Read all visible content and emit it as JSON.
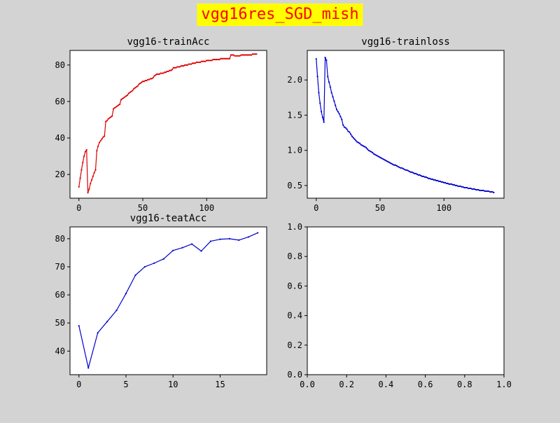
{
  "suptitle": "vgg16res_SGD_mish",
  "chart_data": [
    {
      "type": "line",
      "title": "vgg16-trainAcc",
      "xlim": [
        -7,
        147
      ],
      "ylim": [
        7,
        88
      ],
      "xticks": [
        0,
        50,
        100
      ],
      "yticks": [
        20,
        40,
        60,
        80
      ],
      "color": "#dd0000",
      "marker": true,
      "series": [
        {
          "x": [
            0,
            1,
            2,
            3,
            4,
            5,
            6,
            7,
            8,
            9,
            10,
            11,
            12,
            13,
            14,
            15,
            16,
            17,
            18,
            19,
            20,
            21,
            22,
            23,
            24,
            25,
            26,
            27,
            28,
            29,
            30,
            31,
            32,
            33,
            34,
            35,
            36,
            37,
            38,
            39,
            40,
            41,
            42,
            43,
            44,
            45,
            46,
            47,
            48,
            49,
            50,
            51,
            52,
            53,
            54,
            55,
            56,
            57,
            58,
            59,
            60,
            61,
            62,
            63,
            64,
            65,
            66,
            67,
            68,
            69,
            70,
            71,
            72,
            73,
            74,
            75,
            76,
            77,
            78,
            79,
            80,
            81,
            82,
            83,
            84,
            85,
            86,
            87,
            88,
            89,
            90,
            91,
            92,
            93,
            94,
            95,
            96,
            97,
            98,
            99,
            100,
            101,
            102,
            103,
            104,
            105,
            106,
            107,
            108,
            109,
            110,
            111,
            112,
            113,
            114,
            115,
            116,
            117,
            118,
            119,
            120,
            121,
            122,
            123,
            124,
            125,
            126,
            127,
            128,
            129,
            130,
            131,
            132,
            133,
            134,
            135,
            136,
            137,
            138,
            139
          ],
          "y": [
            13.2,
            18,
            22.5,
            26.5,
            30,
            32.5,
            33.5,
            10,
            12,
            15,
            17,
            19,
            21,
            22.5,
            33,
            35.5,
            37.5,
            38.5,
            39.5,
            40.5,
            41,
            49,
            49.5,
            50.5,
            51,
            51.5,
            52,
            56,
            56.5,
            57,
            57.5,
            58,
            58.5,
            61,
            61.5,
            62,
            62.5,
            63,
            63.5,
            64.5,
            65,
            65.5,
            66,
            67,
            67.5,
            68,
            68.5,
            69.5,
            70,
            70.5,
            71,
            71,
            71.5,
            71.5,
            72,
            72,
            72.5,
            72.5,
            73,
            74,
            74.5,
            75,
            75,
            75,
            75.5,
            75.5,
            75.5,
            76,
            76,
            76.5,
            76.5,
            77,
            77,
            77.5,
            78.5,
            78.5,
            78.5,
            79,
            79,
            79,
            79.5,
            79.5,
            79.5,
            80,
            80,
            80,
            80.5,
            80.5,
            80.5,
            81,
            81,
            81,
            81.5,
            81.5,
            81.5,
            81.5,
            82,
            82,
            82,
            82,
            82.5,
            82.5,
            82.5,
            82.5,
            82.5,
            83,
            83,
            83,
            83,
            83,
            83,
            83.5,
            83.5,
            83.5,
            83.5,
            83.5,
            83.5,
            83.5,
            83.5,
            85.5,
            85.5,
            85.5,
            85,
            85,
            85,
            85,
            85,
            85.5,
            85.5,
            85.5,
            85.5,
            85.5,
            85.5,
            85.5,
            85.5,
            85.5,
            86,
            86,
            86,
            86
          ]
        }
      ]
    },
    {
      "type": "line",
      "title": "vgg16-trainloss",
      "xlim": [
        -7,
        147
      ],
      "ylim": [
        0.32,
        2.42
      ],
      "xticks": [
        0,
        50,
        100
      ],
      "yticks": [
        0.5,
        1.0,
        1.5,
        2.0
      ],
      "ytick_labels": [
        "0.5",
        "1.0",
        "1.5",
        "2.0"
      ],
      "color": "#0000cc",
      "marker": true,
      "series": [
        {
          "x": [
            0,
            1,
            2,
            3,
            4,
            5,
            6,
            7,
            8,
            9,
            10,
            11,
            12,
            13,
            14,
            15,
            16,
            17,
            18,
            19,
            20,
            21,
            22,
            23,
            24,
            25,
            26,
            27,
            28,
            29,
            30,
            31,
            32,
            33,
            34,
            35,
            36,
            37,
            38,
            39,
            40,
            41,
            42,
            43,
            44,
            45,
            46,
            47,
            48,
            49,
            50,
            51,
            52,
            53,
            54,
            55,
            56,
            57,
            58,
            59,
            60,
            61,
            62,
            63,
            64,
            65,
            66,
            67,
            68,
            69,
            70,
            71,
            72,
            73,
            74,
            75,
            76,
            77,
            78,
            79,
            80,
            81,
            82,
            83,
            84,
            85,
            86,
            87,
            88,
            89,
            90,
            91,
            92,
            93,
            94,
            95,
            96,
            97,
            98,
            99,
            100,
            101,
            102,
            103,
            104,
            105,
            106,
            107,
            108,
            109,
            110,
            111,
            112,
            113,
            114,
            115,
            116,
            117,
            118,
            119,
            120,
            121,
            122,
            123,
            124,
            125,
            126,
            127,
            128,
            129,
            130,
            131,
            132,
            133,
            134,
            135,
            136,
            137,
            138,
            139
          ],
          "y": [
            2.3,
            2.05,
            1.82,
            1.67,
            1.55,
            1.47,
            1.4,
            2.32,
            2.28,
            2.05,
            1.97,
            1.9,
            1.82,
            1.76,
            1.7,
            1.64,
            1.58,
            1.55,
            1.52,
            1.48,
            1.44,
            1.36,
            1.33,
            1.32,
            1.3,
            1.27,
            1.26,
            1.23,
            1.2,
            1.18,
            1.16,
            1.14,
            1.12,
            1.11,
            1.1,
            1.08,
            1.07,
            1.06,
            1.05,
            1.04,
            1.02,
            1.0,
            0.99,
            0.98,
            0.97,
            0.95,
            0.94,
            0.93,
            0.92,
            0.91,
            0.9,
            0.89,
            0.88,
            0.87,
            0.86,
            0.85,
            0.84,
            0.83,
            0.82,
            0.81,
            0.8,
            0.79,
            0.79,
            0.78,
            0.77,
            0.76,
            0.75,
            0.75,
            0.74,
            0.73,
            0.72,
            0.72,
            0.71,
            0.7,
            0.69,
            0.69,
            0.68,
            0.67,
            0.67,
            0.66,
            0.65,
            0.65,
            0.64,
            0.63,
            0.63,
            0.62,
            0.62,
            0.61,
            0.6,
            0.6,
            0.59,
            0.59,
            0.58,
            0.58,
            0.57,
            0.57,
            0.56,
            0.56,
            0.55,
            0.55,
            0.54,
            0.54,
            0.53,
            0.53,
            0.52,
            0.52,
            0.52,
            0.51,
            0.51,
            0.5,
            0.5,
            0.49,
            0.49,
            0.49,
            0.48,
            0.48,
            0.47,
            0.47,
            0.47,
            0.46,
            0.46,
            0.46,
            0.45,
            0.45,
            0.45,
            0.44,
            0.44,
            0.44,
            0.43,
            0.43,
            0.43,
            0.43,
            0.42,
            0.42,
            0.42,
            0.42,
            0.41,
            0.41,
            0.41,
            0.4
          ]
        }
      ]
    },
    {
      "type": "line",
      "title": "vgg16-teatAcc",
      "xlim": [
        -0.95,
        19.95
      ],
      "ylim": [
        31.6,
        84.2
      ],
      "xticks": [
        0,
        5,
        10,
        15
      ],
      "yticks": [
        40,
        50,
        60,
        70,
        80
      ],
      "color": "#0000cc",
      "marker": true,
      "series": [
        {
          "x": [
            0,
            1,
            2,
            3,
            4,
            5,
            6,
            7,
            8,
            9,
            10,
            11,
            12,
            13,
            14,
            15,
            16,
            17,
            18,
            19
          ],
          "y": [
            49,
            34,
            46.5,
            50.5,
            54.5,
            60.5,
            67,
            70,
            71.3,
            72.8,
            75.8,
            76.8,
            78.1,
            75.6,
            79.1,
            79.8,
            80,
            79.5,
            80.6,
            82.1
          ]
        }
      ]
    },
    {
      "type": "line",
      "title": "",
      "xlim": [
        0,
        1
      ],
      "ylim": [
        0,
        1
      ],
      "xticks": [
        0,
        0.2,
        0.4,
        0.6,
        0.8,
        1.0
      ],
      "xtick_labels": [
        "0.0",
        "0.2",
        "0.4",
        "0.6",
        "0.8",
        "1.0"
      ],
      "yticks": [
        0,
        0.2,
        0.4,
        0.6,
        0.8,
        1.0
      ],
      "ytick_labels": [
        "0.0",
        "0.2",
        "0.4",
        "0.6",
        "0.8",
        "1.0"
      ],
      "series": []
    }
  ]
}
